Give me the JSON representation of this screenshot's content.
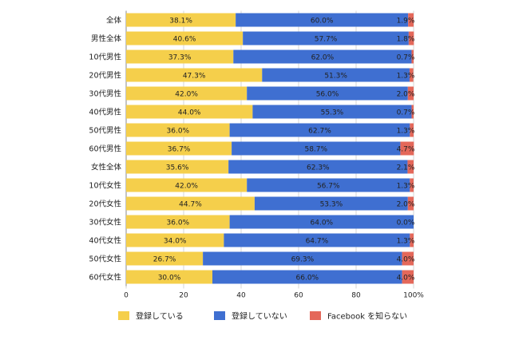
{
  "chart_data": {
    "type": "bar",
    "orientation": "horizontal",
    "stacked": true,
    "categories": [
      "全体",
      "男性全体",
      "10代男性",
      "20代男性",
      "30代男性",
      "40代男性",
      "50代男性",
      "60代男性",
      "女性全体",
      "10代女性",
      "20代女性",
      "30代女性",
      "40代女性",
      "50代女性",
      "60代女性"
    ],
    "series": [
      {
        "name": "登録している",
        "color": "#f5cf4b",
        "values": [
          38.1,
          40.6,
          37.3,
          47.3,
          42.0,
          44.0,
          36.0,
          36.7,
          35.6,
          42.0,
          44.7,
          36.0,
          34.0,
          26.7,
          30.0
        ],
        "labels": [
          "38.1%",
          "40.6%",
          "37.3%",
          "47.3%",
          "42.0%",
          "44.0%",
          "36.0%",
          "36.7%",
          "35.6%",
          "42.0%",
          "44.7%",
          "36.0%",
          "34.0%",
          "26.7%",
          "30.0%"
        ]
      },
      {
        "name": "登録していない",
        "color": "#3f6fd1",
        "values": [
          60.0,
          57.7,
          62.0,
          51.3,
          56.0,
          55.3,
          62.7,
          58.7,
          62.3,
          56.7,
          53.3,
          64.0,
          64.7,
          69.3,
          66.0
        ],
        "labels": [
          "60.0%",
          "57.7%",
          "62.0%",
          "51.3%",
          "56.0%",
          "55.3%",
          "62.7%",
          "58.7%",
          "62.3%",
          "56.7%",
          "53.3%",
          "64.0%",
          "64.7%",
          "69.3%",
          "66.0%"
        ]
      },
      {
        "name": "Facebook を知らない",
        "color": "#e4685a",
        "values": [
          1.9,
          1.8,
          0.7,
          1.3,
          2.0,
          0.7,
          1.3,
          4.7,
          2.1,
          1.3,
          2.0,
          0.0,
          1.3,
          4.0,
          4.0
        ],
        "labels": [
          "1.9%",
          "1.8%",
          "0.7%",
          "1.3%",
          "2.0%",
          "0.7%",
          "1.3%",
          "4.7%",
          "2.1%",
          "1.3%",
          "2.0%",
          "0.0%",
          "1.3%",
          "4.0%",
          "4.0%"
        ]
      }
    ],
    "x_ticks": [
      "0",
      "20",
      "40",
      "60",
      "80",
      "100%"
    ],
    "xlim": [
      0,
      100
    ],
    "grid": true,
    "legend_position": "bottom"
  }
}
